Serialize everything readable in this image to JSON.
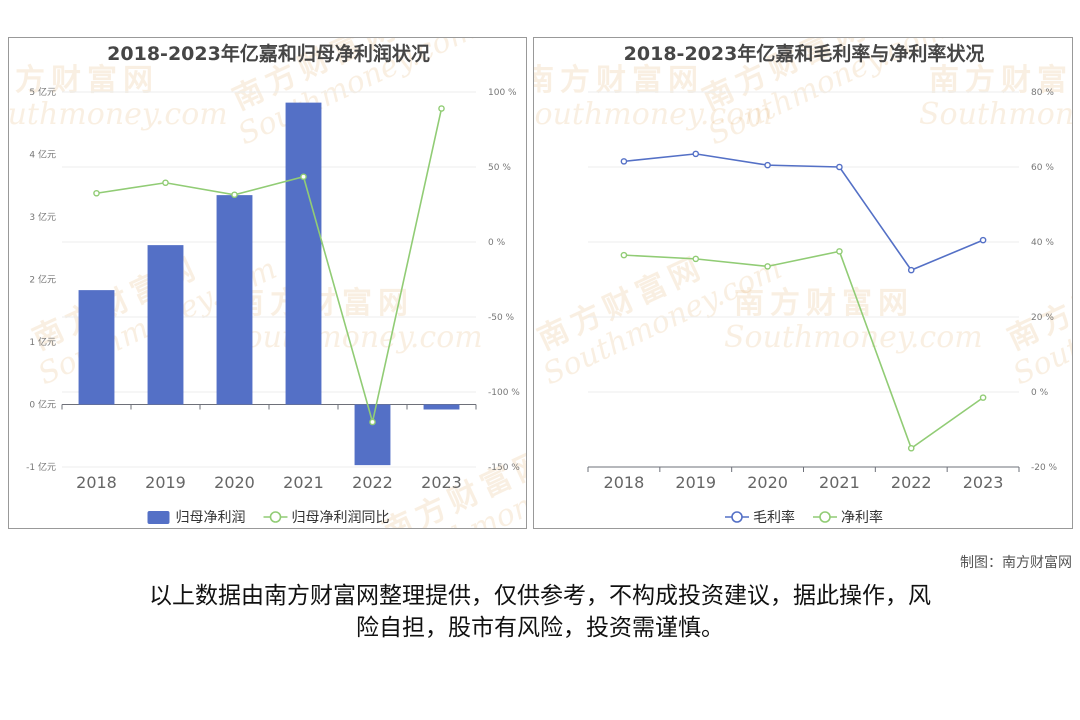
{
  "watermark": {
    "cn": "南方财富网",
    "en": "Southmoney.com"
  },
  "credit": "制图：南方财富网",
  "disclaimer_line1": "以上数据由南方财富网整理提供，仅供参考，不构成投资建议，据此操作，风",
  "disclaimer_line2": "险自担，股市有风险，投资需谨慎。",
  "chart_data": [
    {
      "type": "bar",
      "title": "2018-2023年亿嘉和归母净利润状况",
      "categories": [
        "2018",
        "2019",
        "2020",
        "2021",
        "2022",
        "2023"
      ],
      "y_left": {
        "ticks": [
          -1,
          0,
          1,
          2,
          3,
          4,
          5
        ],
        "unit": "亿元",
        "ylim": [
          -1,
          5
        ]
      },
      "y_right": {
        "ticks": [
          -150,
          -100,
          -50,
          0,
          50,
          100
        ],
        "unit": "%",
        "ylim": [
          -150,
          100
        ]
      },
      "series": [
        {
          "name": "归母净利润",
          "type": "bar",
          "axis": "left",
          "color": "#5470c6",
          "values": [
            1.83,
            2.55,
            3.35,
            4.83,
            -0.97,
            -0.08
          ]
        },
        {
          "name": "归母净利润同比",
          "type": "line",
          "axis": "right",
          "color": "#91cc75",
          "values": [
            32.5,
            39.5,
            31.5,
            43.5,
            -120,
            89
          ]
        }
      ],
      "legend": "bottom",
      "grid": true
    },
    {
      "type": "line",
      "title": "2018-2023年亿嘉和毛利率与净利率状况",
      "categories": [
        "2018",
        "2019",
        "2020",
        "2021",
        "2022",
        "2023"
      ],
      "y_right": {
        "ticks": [
          -20,
          0,
          20,
          40,
          60,
          80
        ],
        "unit": "%",
        "ylim": [
          -20,
          80
        ]
      },
      "series": [
        {
          "name": "毛利率",
          "color": "#5470c6",
          "values": [
            61.5,
            63.5,
            60.5,
            60,
            32.5,
            40.5
          ]
        },
        {
          "name": "净利率",
          "color": "#91cc75",
          "values": [
            36.5,
            35.5,
            33.5,
            37.5,
            -15,
            -1.5
          ]
        }
      ],
      "legend": "bottom",
      "grid": true
    }
  ]
}
